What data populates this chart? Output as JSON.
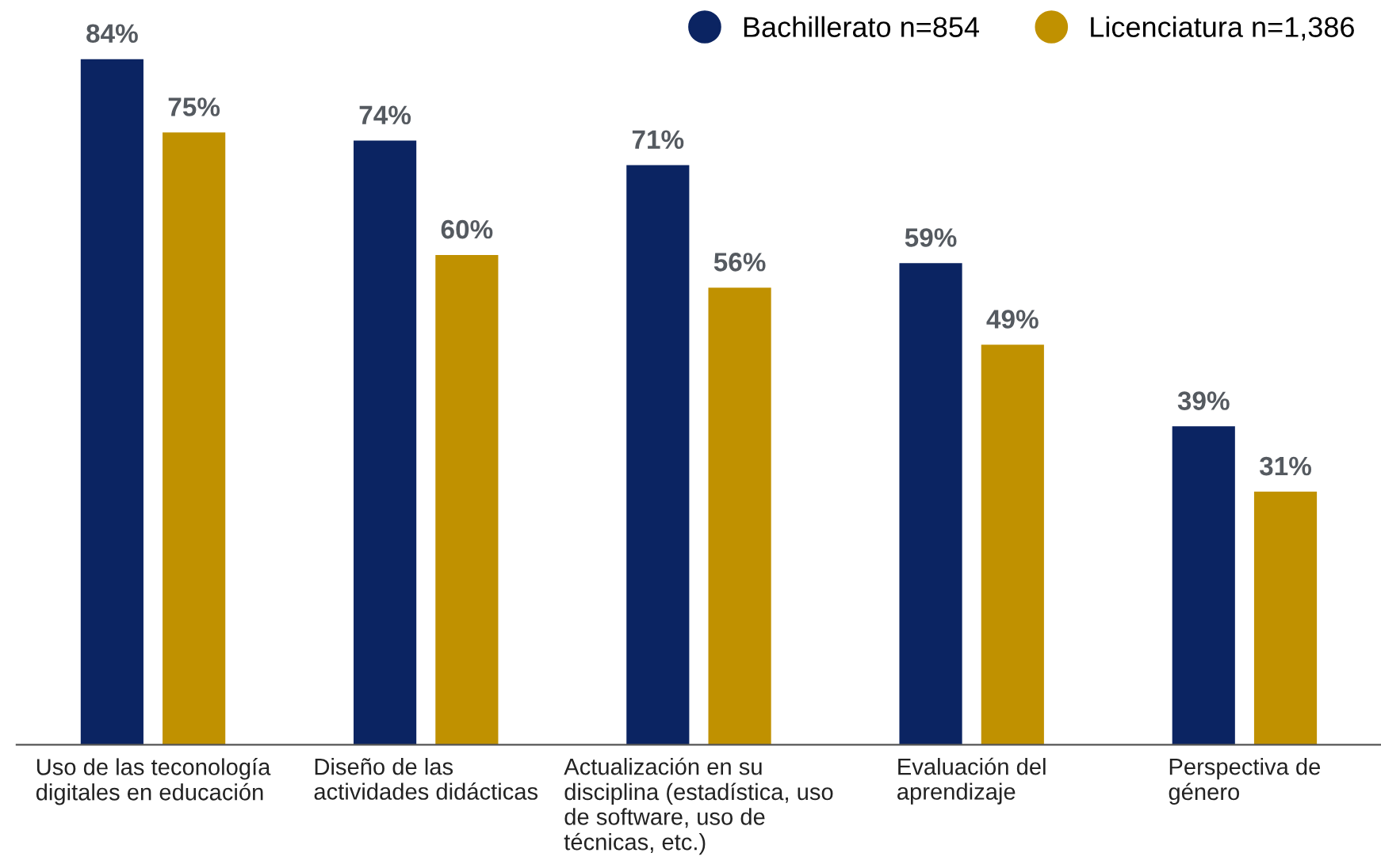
{
  "chart_data": {
    "type": "bar",
    "categories": [
      "Uso de las teconología\ndigitales en educación",
      "Diseño de las\nactividades didácticas",
      "Actualización en su\ndisciplina (estadística, uso\nde software, uso de\ntécnicas, etc.)",
      "Evaluación del\naprendizaje",
      "Perspectiva de\ngénero"
    ],
    "series": [
      {
        "name": "Bachillerato n=854",
        "color": "#0b2462",
        "values": [
          84,
          74,
          71,
          59,
          39
        ],
        "value_labels": [
          "84%",
          "74%",
          "71%",
          "59%",
          "39%"
        ]
      },
      {
        "name": "Licenciatura n=1,386",
        "color": "#c09100",
        "values": [
          75,
          60,
          56,
          49,
          31
        ],
        "value_labels": [
          "75%",
          "60%",
          "56%",
          "49%",
          "31%"
        ]
      }
    ],
    "legend": "top right",
    "grid": false,
    "tick_labels": "x"
  }
}
